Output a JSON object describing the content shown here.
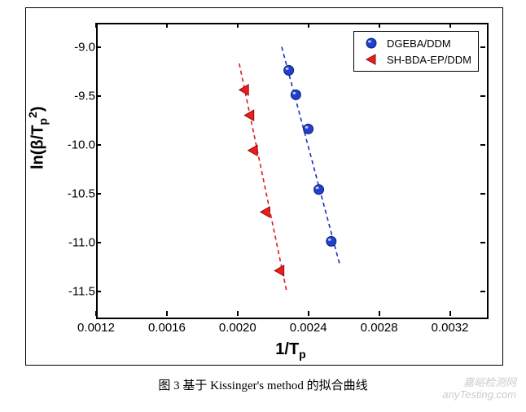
{
  "chart": {
    "type": "scatter",
    "background_color": "#ffffff",
    "border_color": "#000000",
    "xlabel": "1/Tp",
    "ylabel": "ln(β/Tp²)",
    "xlabel_html": "1/T<sub>p</sub>",
    "ylabel_html": "ln(β/T<sub>p</sub><sup>2</sup>)",
    "label_fontsize": 20,
    "tick_fontsize": 15,
    "xlim": [
      0.0012,
      0.0034
    ],
    "ylim": [
      -11.75,
      -8.75
    ],
    "xticks": [
      0.0012,
      0.0016,
      0.002,
      0.0024,
      0.0028,
      0.0032
    ],
    "xtick_labels": [
      "0.0012",
      "0.0016",
      "0.0020",
      "0.0024",
      "0.0028",
      "0.0032"
    ],
    "yticks": [
      -11.5,
      -11.0,
      -10.5,
      -10.0,
      -9.5,
      -9.0
    ],
    "ytick_labels": [
      "-11.5",
      "-11.0",
      "-10.5",
      "-10.0",
      "-9.5",
      "-9.0"
    ],
    "series": [
      {
        "name": "DGEBA/DDM",
        "marker": "circle",
        "marker_size": 12,
        "marker_fill": "#2040d0",
        "marker_stroke": "#10206a",
        "line_color": "#1a2fbf",
        "line_dash": "5,4",
        "line_width": 1.6,
        "points": [
          {
            "x": 0.00228,
            "y": -9.22
          },
          {
            "x": 0.00232,
            "y": -9.47
          },
          {
            "x": 0.00239,
            "y": -9.82
          },
          {
            "x": 0.00245,
            "y": -10.44
          },
          {
            "x": 0.00252,
            "y": -10.97
          }
        ],
        "fit_line": {
          "x1": 0.00224,
          "y1": -8.98,
          "x2": 0.00257,
          "y2": -11.22
        }
      },
      {
        "name": "SH-BDA-EP/DDM",
        "marker": "triangle-left",
        "marker_size": 13,
        "marker_fill": "#ef1c1c",
        "marker_stroke": "#8a0f0f",
        "line_color": "#e01818",
        "line_dash": "5,4",
        "line_width": 1.6,
        "points": [
          {
            "x": 0.00203,
            "y": -9.42
          },
          {
            "x": 0.00206,
            "y": -9.68
          },
          {
            "x": 0.00208,
            "y": -10.04
          },
          {
            "x": 0.00215,
            "y": -10.67
          },
          {
            "x": 0.00223,
            "y": -11.27
          }
        ],
        "fit_line": {
          "x1": 0.002,
          "y1": -9.15,
          "x2": 0.00227,
          "y2": -11.5
        }
      }
    ],
    "legend": {
      "position": "top-right",
      "border_color": "#000000",
      "items": [
        "DGEBA/DDM",
        "SH-BDA-EP/DDM"
      ]
    }
  },
  "caption": "图 3  基于 Kissinger's method 的拟合曲线",
  "watermark": {
    "line1": "嘉峪检测网",
    "line2": "anyTesting.com",
    "color": "#cccccc"
  }
}
